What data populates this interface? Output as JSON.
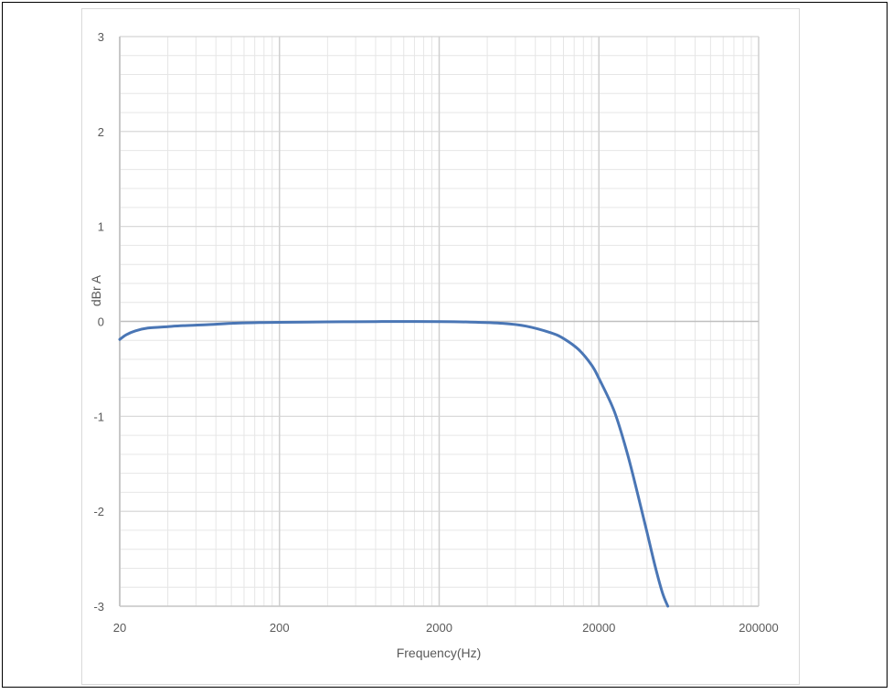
{
  "chart_data": {
    "type": "line",
    "title": "",
    "xlabel": "Frequency(Hz)",
    "ylabel": "dBr A",
    "x_scale": "log",
    "xlim": [
      20,
      200000
    ],
    "ylim": [
      -3,
      3
    ],
    "x_ticks": [
      "20",
      "200",
      "2000",
      "20000",
      "200000"
    ],
    "y_ticks": [
      "3",
      "2",
      "1",
      "0",
      "-1",
      "-2",
      "-3"
    ],
    "grid": true,
    "legend": "none",
    "series": [
      {
        "color": "#4a76b5",
        "x": [
          20,
          22,
          25,
          30,
          40,
          50,
          70,
          100,
          150,
          200,
          300,
          500,
          800,
          1000,
          2000,
          3000,
          5000,
          7000,
          10000,
          12000,
          15000,
          18000,
          20000,
          25000,
          30000,
          35000,
          40000,
          45000,
          50000,
          54000
        ],
        "y": [
          -0.19,
          -0.14,
          -0.1,
          -0.07,
          -0.055,
          -0.045,
          -0.035,
          -0.02,
          -0.012,
          -0.01,
          -0.007,
          -0.004,
          -0.002,
          -0.001,
          -0.002,
          -0.006,
          -0.02,
          -0.05,
          -0.12,
          -0.18,
          -0.3,
          -0.46,
          -0.6,
          -0.95,
          -1.38,
          -1.82,
          -2.22,
          -2.58,
          -2.86,
          -3.0
        ]
      }
    ]
  }
}
